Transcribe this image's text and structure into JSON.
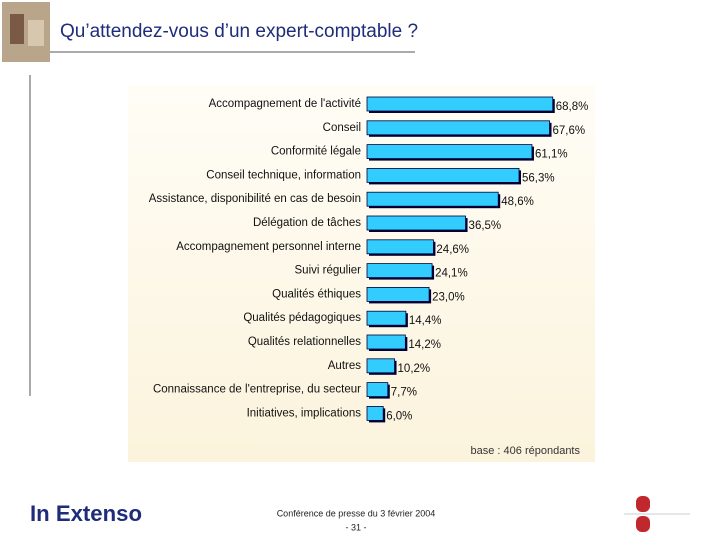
{
  "title": "Qu’attendez-vous d’un expert-comptable ?",
  "chart_data": {
    "type": "bar",
    "orientation": "horizontal",
    "categories": [
      "Accompagnement de l'activité",
      "Conseil",
      "Conformité légale",
      "Conseil technique, information",
      "Assistance, disponibilité en cas de besoin",
      "Délégation de tâches",
      "Accompagnement personnel interne",
      "Suivi régulier",
      "Qualités éthiques",
      "Qualités pédagogiques",
      "Qualités relationnelles",
      "Autres",
      "Connaissance de l'entreprise, du secteur",
      "Initiatives, implications"
    ],
    "values": [
      68.8,
      67.6,
      61.1,
      56.3,
      48.6,
      36.5,
      24.6,
      24.1,
      23.0,
      14.4,
      14.2,
      10.2,
      7.7,
      6.0
    ],
    "value_labels": [
      "68,8%",
      "67,6%",
      "61,1%",
      "56,3%",
      "48,6%",
      "36,5%",
      "24,6%",
      "24,1%",
      "23,0%",
      "14,4%",
      "14,2%",
      "10,2%",
      "7,7%",
      "6,0%"
    ],
    "color": "#33ccff",
    "note": "base : 406 répondants"
  },
  "footer": {
    "logo": "In Extenso",
    "event": "Conférence de presse du 3 février 2004",
    "page": "- 31 -"
  }
}
